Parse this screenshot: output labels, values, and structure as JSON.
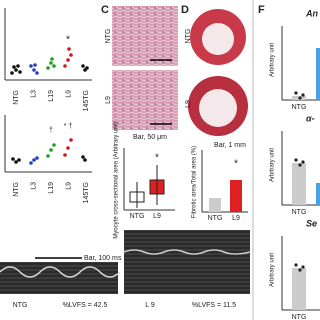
{
  "panel_b": {
    "groups": [
      "NTG",
      "L3",
      "L19",
      "L9",
      "145TG"
    ],
    "marks_top": "*",
    "marks_bottom": [
      "†",
      "* †"
    ]
  },
  "panel_c": {
    "letter": "C",
    "rows": [
      "NTG",
      "L9"
    ],
    "scale": "Bar, 50 μm",
    "ylabel": "Myocyte cross-sectional area (Arbitrary unit)",
    "groups": [
      "NTG",
      "L9"
    ],
    "mark": "*"
  },
  "panel_d": {
    "letter": "D",
    "rows": [
      "NTG",
      "L9"
    ],
    "scale": "Bar, 1 mm",
    "ylabel": "Fibrotic area/Total area (%)",
    "groups": [
      "NTG",
      "L9"
    ],
    "mark": "*"
  },
  "panel_e": {
    "scale": "Bar, 100 ms",
    "left": {
      "label": "NTG",
      "fs": "%LVFS = 42.5"
    },
    "right": {
      "label": "L 9",
      "fs": "%LVFS = 11.5"
    }
  },
  "panel_f": {
    "letter": "F",
    "plots": [
      {
        "title": "An",
        "ylabel": "Arbitrary unit",
        "group": "NTG"
      },
      {
        "title": "α-",
        "ylabel": "Arbitrary unit",
        "group": "NTG"
      },
      {
        "title": "Se",
        "ylabel": "Arbitrary unit",
        "group": "NTG"
      }
    ]
  }
}
